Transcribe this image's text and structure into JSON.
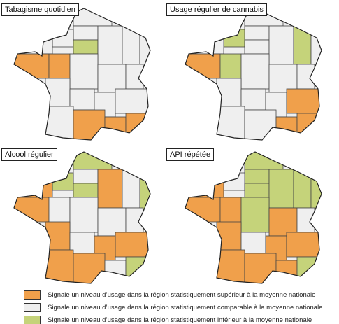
{
  "maps": [
    {
      "title": "Tabagisme quotidien"
    },
    {
      "title": "Usage régulier de cannabis"
    },
    {
      "title": "Alcool régulier"
    },
    {
      "title": "API répétée"
    }
  ],
  "legend": [
    {
      "label": "Signale un niveau d’usage dans la région statistiquement supérieur à la moyenne nationale",
      "color": "#f0a04b"
    },
    {
      "label": "Signale un niveau d’usage dans la région statistiquement comparable à la moyenne nationale",
      "color": "#efefef"
    },
    {
      "label": "Signale un niveau d’usage dans la région statistiquement inférieur à la moyenne nationale",
      "color": "#c5d37a"
    }
  ]
}
